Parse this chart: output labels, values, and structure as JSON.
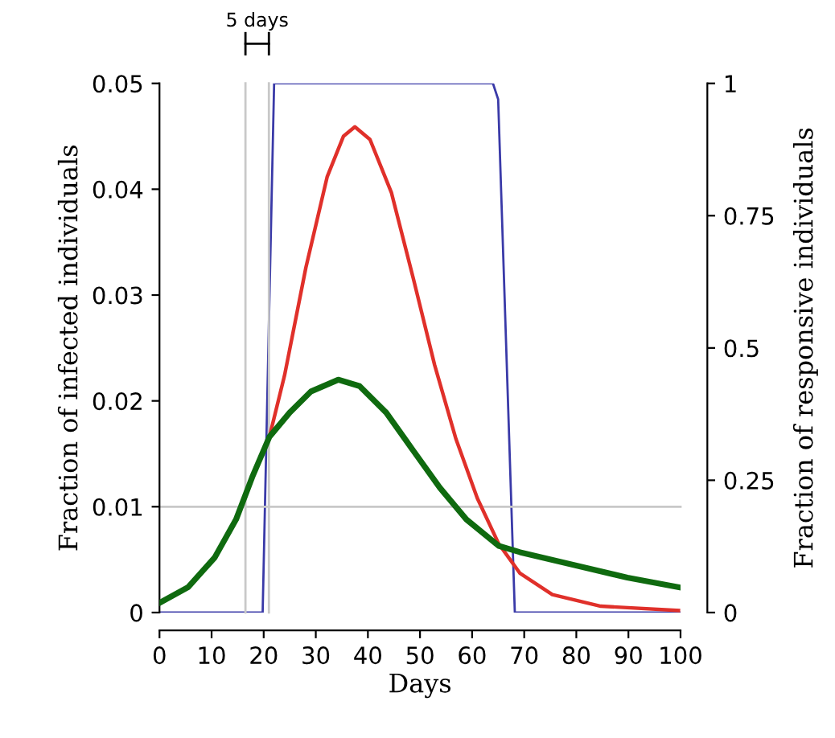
{
  "chart_data": {
    "type": "line",
    "xlabel": "Days",
    "ylabel": "Fraction of infected individuals",
    "y2label": "Fraction of responsive individuals",
    "xlim": [
      0,
      100
    ],
    "xticks": [
      0,
      10,
      20,
      30,
      40,
      50,
      60,
      70,
      80,
      90,
      100
    ],
    "ylim": [
      0,
      0.05
    ],
    "yticks": [
      0,
      0.01,
      0.02,
      0.03,
      0.04,
      0.05
    ],
    "y2lim": [
      0,
      1
    ],
    "y2ticks": [
      0,
      0.25,
      0.5,
      0.75,
      1
    ],
    "grid": false,
    "marker": "none",
    "line_style": "solid",
    "series": [
      {
        "color": "#3a3aa8",
        "axis": "y2",
        "x": [
          0,
          19.8,
          22,
          64,
          65,
          68.2,
          100
        ],
        "values": [
          0,
          0,
          1,
          1,
          0.97,
          0,
          0
        ]
      },
      {
        "color": "#e0302a",
        "x": [
          21.1,
          24,
          28.1,
          32.2,
          35.3,
          37.5,
          40.4,
          44.5,
          48.7,
          52.8,
          56.9,
          61,
          65.1,
          69.2,
          75.4,
          84.7,
          99.6
        ],
        "values": [
          0.0166,
          0.0224,
          0.0326,
          0.0412,
          0.045,
          0.0459,
          0.0447,
          0.0397,
          0.0316,
          0.0234,
          0.0164,
          0.0108,
          0.0065,
          0.0037,
          0.0017,
          0.0006,
          0.0002
        ]
      },
      {
        "color": "#0f6a0f",
        "x": [
          0,
          5.5,
          10.6,
          14.7,
          17.8,
          21.1,
          25,
          29.1,
          34.3,
          38.4,
          43.5,
          48.7,
          53.8,
          58.9,
          65.1,
          69.2,
          79.5,
          89.8,
          99.6
        ],
        "values": [
          0.0009,
          0.0024,
          0.0052,
          0.0088,
          0.0128,
          0.0166,
          0.0189,
          0.0209,
          0.022,
          0.0214,
          0.0189,
          0.0153,
          0.0118,
          0.0088,
          0.0063,
          0.0057,
          0.0045,
          0.0033,
          0.0024
        ]
      }
    ],
    "ref_lines": [
      {
        "axis": "x",
        "value": 16.5,
        "color": "#c8c8c8"
      },
      {
        "axis": "x",
        "value": 21,
        "color": "#c8c8c8"
      },
      {
        "axis": "y",
        "value": 0.01,
        "color": "#c8c8c8"
      }
    ],
    "annotations": [
      "5 days"
    ]
  }
}
